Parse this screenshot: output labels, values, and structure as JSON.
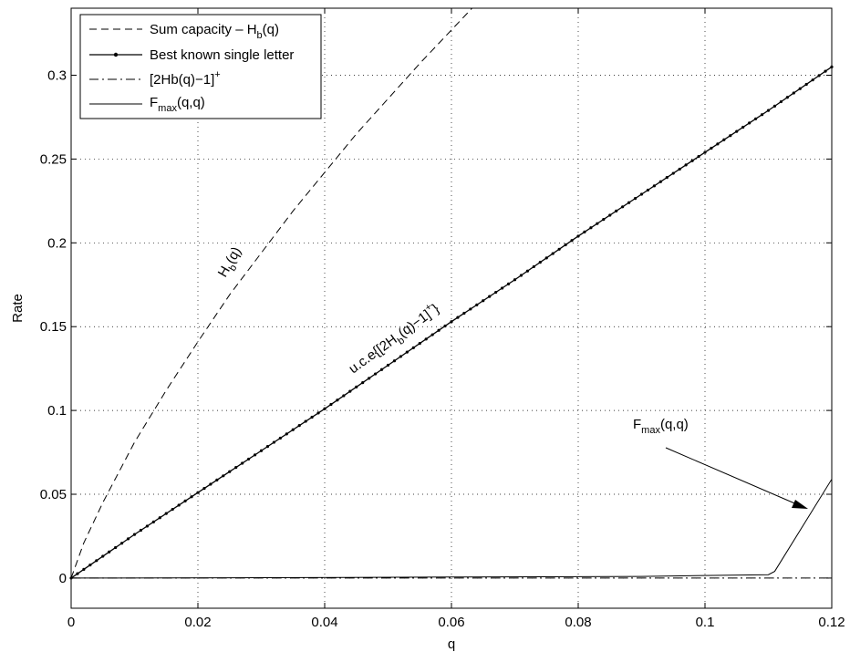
{
  "chart_data": {
    "type": "line",
    "xlabel": "q",
    "ylabel": "Rate",
    "xlim": [
      0,
      0.12
    ],
    "ylim": [
      -0.018,
      0.34
    ],
    "grid": true,
    "legend_position": "top-left",
    "x_ticks": [
      "0",
      "0.02",
      "0.04",
      "0.06",
      "0.08",
      "0.1",
      "0.12"
    ],
    "y_ticks": [
      "0",
      "0.05",
      "0.1",
      "0.15",
      "0.2",
      "0.25",
      "0.3"
    ],
    "legend": [
      {
        "label": "Sum capacity – H",
        "sub": "b",
        "suffix": "(q)",
        "style": "dashed"
      },
      {
        "label": "Best known single letter",
        "style": "dotted-marker"
      },
      {
        "label": "[2Hb(q)−1]",
        "sup": "+",
        "style": "dashdot"
      },
      {
        "label": "F",
        "sub": "max",
        "suffix": "(q,q)",
        "style": "solid"
      }
    ],
    "series": [
      {
        "style": "dashed",
        "x": [
          0,
          0.002,
          0.005,
          0.01,
          0.015,
          0.02,
          0.025,
          0.03,
          0.035,
          0.04,
          0.045,
          0.05,
          0.055,
          0.06,
          0.065,
          0.067
        ],
        "y": [
          0,
          0.021,
          0.045,
          0.081,
          0.112,
          0.141,
          0.169,
          0.194,
          0.219,
          0.242,
          0.265,
          0.286,
          0.307,
          0.327,
          0.347,
          0.354
        ]
      },
      {
        "style": "dotted-marker",
        "x": [
          0,
          0.01,
          0.02,
          0.03,
          0.04,
          0.05,
          0.06,
          0.07,
          0.08,
          0.09,
          0.1,
          0.11,
          0.12
        ],
        "y": [
          0,
          0.026,
          0.051,
          0.076,
          0.101,
          0.127,
          0.153,
          0.178,
          0.204,
          0.229,
          0.254,
          0.279,
          0.305
        ]
      },
      {
        "style": "dashdot",
        "x": [
          0,
          0.11,
          0.12
        ],
        "y": [
          0,
          0,
          0
        ]
      },
      {
        "style": "solid",
        "x": [
          0,
          0.03,
          0.06,
          0.09,
          0.11,
          0.111,
          0.12
        ],
        "y": [
          0,
          0.0002,
          0.0006,
          0.001,
          0.002,
          0.004,
          0.059
        ]
      }
    ],
    "annotations": [
      {
        "text": "H",
        "sub": "b",
        "suffix": "(q)"
      },
      {
        "text": "u.c.e{[2H",
        "sub": "b",
        "suffix": "(q)−1]",
        "sup": "+",
        "tail": "}"
      },
      {
        "text": "F",
        "sub": "max",
        "suffix": "(q,q)"
      }
    ]
  }
}
